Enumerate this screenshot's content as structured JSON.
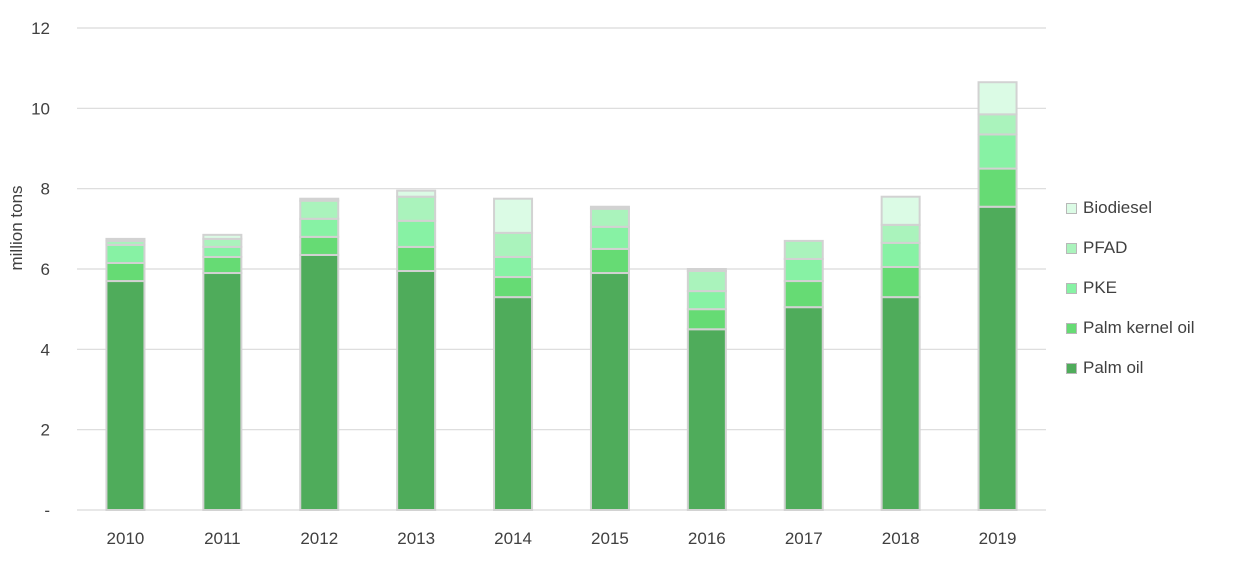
{
  "chart_data": {
    "type": "bar",
    "stacked": true,
    "categories": [
      "2010",
      "2011",
      "2012",
      "2013",
      "2014",
      "2015",
      "2016",
      "2017",
      "2018",
      "2019"
    ],
    "series": [
      {
        "name": "Palm oil",
        "color": "#4fac5b",
        "values": [
          5.7,
          5.9,
          6.35,
          5.95,
          5.3,
          5.9,
          4.5,
          5.05,
          5.3,
          7.55
        ]
      },
      {
        "name": "Palm kernel oil",
        "color": "#66db74",
        "values": [
          0.45,
          0.4,
          0.45,
          0.6,
          0.5,
          0.6,
          0.5,
          0.65,
          0.75,
          0.95
        ]
      },
      {
        "name": "PKE",
        "color": "#87f2a4",
        "values": [
          0.45,
          0.25,
          0.45,
          0.65,
          0.5,
          0.55,
          0.45,
          0.55,
          0.6,
          0.85
        ]
      },
      {
        "name": "PFAD",
        "color": "#aaf3bc",
        "values": [
          0.1,
          0.2,
          0.45,
          0.6,
          0.6,
          0.45,
          0.5,
          0.45,
          0.45,
          0.5
        ]
      },
      {
        "name": "Biodiesel",
        "color": "#dbfbe5",
        "values": [
          0.05,
          0.1,
          0.05,
          0.15,
          0.85,
          0.05,
          0.05,
          0.0,
          0.7,
          0.8
        ]
      }
    ],
    "ylabel": "million tons",
    "yticks": [
      "-",
      "2",
      "4",
      "6",
      "8",
      "10",
      "12"
    ],
    "ylim": [
      0,
      12
    ],
    "grid": true,
    "legend_position": "right"
  }
}
